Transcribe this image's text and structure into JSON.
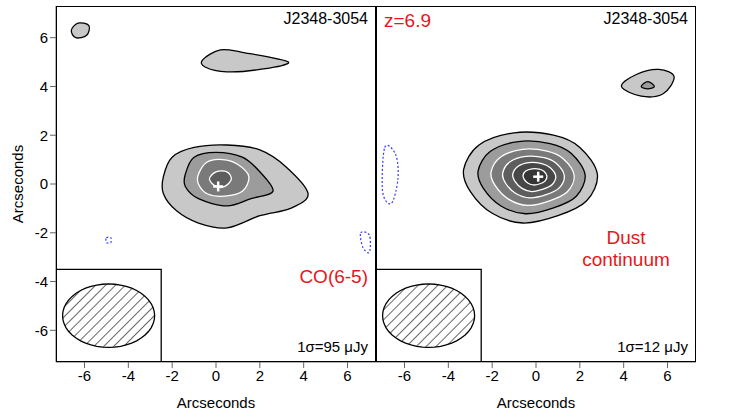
{
  "chart_data": [
    {
      "type": "contour",
      "title": "J2348-3054",
      "xlabel": "Arcseconds",
      "ylabel": "Arcseconds",
      "xlim": [
        -7.3,
        7.3
      ],
      "ylim": [
        -7.3,
        7.3
      ],
      "xticks": [
        -6,
        -4,
        -2,
        0,
        2,
        4,
        6
      ],
      "yticks": [
        -6,
        -4,
        -2,
        0,
        2,
        4,
        6
      ],
      "label": {
        "text": "CO(6-5)",
        "color": "#e8161b"
      },
      "noise": "1σ=95 μJy",
      "beam": {
        "major": 4.2,
        "minor": 2.6
      },
      "source_position": {
        "x": 0.1,
        "y": -0.1,
        "marker": "cross",
        "color": "#ffffff"
      },
      "contours": [
        {
          "color": "#000000",
          "line_style": "solid",
          "x": [
            -2.4,
            -2.0,
            -1.0,
            0.5,
            2.0,
            3.2,
            4.2,
            3.4,
            2.0,
            0.5,
            -0.8,
            -1.8,
            -2.4
          ],
          "y": [
            0.3,
            1.1,
            1.5,
            1.6,
            1.4,
            0.7,
            -0.4,
            -1.0,
            -1.3,
            -1.8,
            -1.6,
            -1.1,
            -0.4
          ]
        },
        {
          "color": "#000000",
          "line_style": "solid",
          "x": [
            -1.4,
            -1.0,
            0.0,
            1.2,
            2.0,
            2.6,
            1.6,
            0.5,
            -0.8,
            -1.4
          ],
          "y": [
            0.4,
            1.1,
            1.3,
            1.1,
            0.5,
            -0.3,
            -0.6,
            -0.9,
            -0.6,
            -0.1
          ]
        },
        {
          "color": "#ffffff",
          "line_style": "solid",
          "x": [
            -0.8,
            -0.4,
            0.3,
            1.0,
            1.5,
            1.2,
            0.4,
            -0.4,
            -0.8
          ],
          "y": [
            0.4,
            0.9,
            1.0,
            0.8,
            0.3,
            -0.3,
            -0.5,
            -0.4,
            0.0
          ]
        },
        {
          "color": "#ffffff",
          "line_style": "solid",
          "x": [
            -0.3,
            0.0,
            0.5,
            0.7,
            0.4,
            0.0
          ],
          "y": [
            0.2,
            0.5,
            0.5,
            0.2,
            -0.1,
            -0.1
          ]
        },
        {
          "color": "#000000",
          "line_style": "solid",
          "x": [
            -0.6,
            0.2,
            1.2,
            3.3,
            2.0,
            0.5,
            -0.5
          ],
          "y": [
            5.1,
            5.5,
            5.4,
            5.0,
            4.7,
            4.6,
            4.8
          ]
        },
        {
          "color": "#000000",
          "line_style": "solid",
          "x": [
            -6.6,
            -6.3,
            -5.8,
            -5.9,
            -6.4
          ],
          "y": [
            6.3,
            6.6,
            6.5,
            6.1,
            6.0
          ]
        },
        {
          "color": "#3a3aff",
          "line_style": "dotted",
          "x": [
            -5.0,
            -4.8,
            -4.8,
            -5.0
          ],
          "y": [
            -2.2,
            -2.2,
            -2.4,
            -2.4
          ]
        },
        {
          "color": "#3a3aff",
          "line_style": "dotted",
          "x": [
            6.6,
            7.0,
            7.0,
            6.7
          ],
          "y": [
            -2.0,
            -2.1,
            -2.8,
            -2.6
          ]
        }
      ]
    },
    {
      "type": "contour",
      "title": "J2348-3054",
      "xlabel": "Arcseconds",
      "xlim": [
        -7.3,
        7.3
      ],
      "ylim": [
        -7.3,
        7.3
      ],
      "xticks": [
        -6,
        -4,
        -2,
        0,
        2,
        4,
        6
      ],
      "yticks": [
        -6,
        -4,
        -2,
        0,
        2,
        4,
        6
      ],
      "tick_labels": "x",
      "redshift": {
        "text": "z=6.9",
        "color": "#e8161b"
      },
      "label": {
        "text": "Dust continuum",
        "color": "#e8161b"
      },
      "noise": "1σ=12 μJy",
      "beam": {
        "major": 4.2,
        "minor": 2.6
      },
      "source_position": {
        "x": 0.1,
        "y": 0.3,
        "marker": "cross",
        "color": "#ffffff"
      },
      "contours": [
        {
          "color": "#000000",
          "line_style": "solid",
          "x": [
            -3.3,
            -2.6,
            -1.0,
            0.8,
            2.0,
            2.8,
            2.3,
            1.0,
            -0.6,
            -2.0,
            -3.0
          ],
          "y": [
            0.6,
            1.6,
            2.1,
            2.0,
            1.5,
            0.4,
            -0.7,
            -1.3,
            -1.6,
            -1.2,
            -0.3
          ]
        },
        {
          "color": "#000000",
          "line_style": "solid",
          "x": [
            -2.64,
            -2.08,
            -0.8,
            0.64,
            1.6,
            2.24,
            1.84,
            0.8,
            -0.48,
            -1.6,
            -2.4
          ],
          "y": [
            0.54,
            1.34,
            1.74,
            1.66,
            1.26,
            0.38,
            -0.5,
            -0.98,
            -1.22,
            -0.9,
            -0.18
          ]
        },
        {
          "color": "#ffffff",
          "line_style": "solid",
          "x": [
            -2.05,
            -1.61,
            -0.62,
            0.5,
            1.24,
            1.74,
            1.43,
            0.62,
            -0.37,
            -1.24,
            -1.86
          ],
          "y": [
            0.49,
            1.11,
            1.42,
            1.35,
            1.04,
            0.36,
            -0.32,
            -0.69,
            -0.88,
            -0.63,
            -0.07
          ]
        },
        {
          "color": "#ffffff",
          "line_style": "solid",
          "x": [
            -1.52,
            -1.2,
            -0.46,
            0.37,
            0.92,
            1.29,
            1.06,
            0.46,
            -0.28,
            -0.92,
            -1.38
          ],
          "y": [
            0.44,
            0.9,
            1.13,
            1.08,
            0.85,
            0.35,
            -0.16,
            -0.44,
            -0.57,
            -0.39,
            0.02
          ]
        },
        {
          "color": "#ffffff",
          "line_style": "solid",
          "x": [
            -1.06,
            -0.83,
            -0.32,
            0.26,
            0.64,
            0.9,
            0.74,
            0.32,
            -0.19,
            -0.64,
            -0.96
          ],
          "y": [
            0.4,
            0.72,
            0.88,
            0.84,
            0.68,
            0.33,
            -0.02,
            -0.21,
            -0.31,
            -0.18,
            0.11
          ]
        },
        {
          "color": "#ffffff",
          "line_style": "solid",
          "x": [
            -0.59,
            -0.47,
            -0.18,
            0.14,
            0.36,
            0.5,
            0.41,
            0.18,
            -0.11,
            -0.36,
            -0.54
          ],
          "y": [
            0.35,
            0.53,
            0.62,
            0.61,
            0.52,
            0.32,
            0.12,
            0.01,
            -0.04,
            0.03,
            0.19
          ]
        },
        {
          "color": "#000000",
          "line_style": "solid",
          "x": [
            3.9,
            4.6,
            5.6,
            6.3,
            5.8,
            4.8
          ],
          "y": [
            4.0,
            4.5,
            4.7,
            4.4,
            3.7,
            3.6
          ]
        },
        {
          "color": "#000000",
          "line_style": "solid",
          "x": [
            4.8,
            5.1,
            5.4,
            5.1
          ],
          "y": [
            4.0,
            4.2,
            4.0,
            3.9
          ]
        },
        {
          "color": "#3a3aff",
          "line_style": "dotted",
          "x": [
            -6.9,
            -6.4,
            -6.3,
            -6.6,
            -7.0
          ],
          "y": [
            1.5,
            1.2,
            0.2,
            -0.8,
            -0.3
          ]
        }
      ]
    }
  ]
}
